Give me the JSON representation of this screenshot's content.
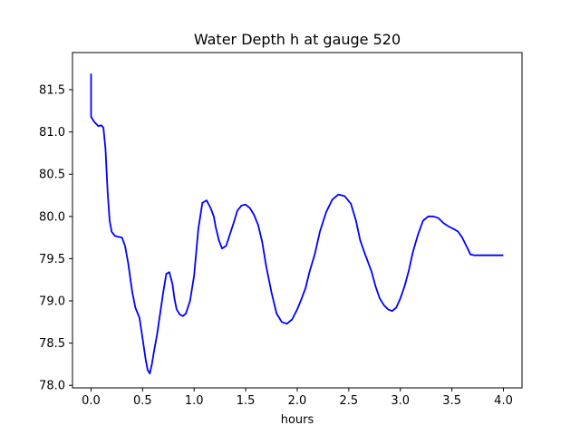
{
  "chart_data": {
    "type": "line",
    "title": "Water Depth h at gauge 520",
    "xlabel": "hours",
    "ylabel": "",
    "xlim": [
      -0.18,
      4.18
    ],
    "ylim": [
      77.97,
      81.94
    ],
    "xticks": [
      0.0,
      0.5,
      1.0,
      1.5,
      2.0,
      2.5,
      3.0,
      3.5,
      4.0
    ],
    "xtick_labels": [
      "0.0",
      "0.5",
      "1.0",
      "1.5",
      "2.0",
      "2.5",
      "3.0",
      "3.5",
      "4.0"
    ],
    "yticks": [
      78.0,
      78.5,
      79.0,
      79.5,
      80.0,
      80.5,
      81.0,
      81.5
    ],
    "ytick_labels": [
      "78.0",
      "78.5",
      "79.0",
      "79.5",
      "80.0",
      "80.5",
      "81.0",
      "81.5"
    ],
    "grid": false,
    "series": [
      {
        "name": "",
        "color": "#0000ff",
        "x": [
          0.0,
          0.0,
          0.0,
          0.03,
          0.07,
          0.1,
          0.12,
          0.14,
          0.16,
          0.18,
          0.2,
          0.23,
          0.26,
          0.3,
          0.33,
          0.36,
          0.4,
          0.43,
          0.47,
          0.5,
          0.53,
          0.55,
          0.57,
          0.59,
          0.61,
          0.64,
          0.67,
          0.7,
          0.73,
          0.76,
          0.79,
          0.81,
          0.83,
          0.86,
          0.89,
          0.92,
          0.96,
          1.0,
          1.04,
          1.08,
          1.12,
          1.16,
          1.19,
          1.21,
          1.24,
          1.27,
          1.31,
          1.35,
          1.39,
          1.42,
          1.46,
          1.5,
          1.54,
          1.58,
          1.62,
          1.66,
          1.7,
          1.75,
          1.8,
          1.85,
          1.9,
          1.95,
          2.0,
          2.04,
          2.08,
          2.12,
          2.17,
          2.22,
          2.28,
          2.34,
          2.4,
          2.46,
          2.52,
          2.57,
          2.61,
          2.65,
          2.68,
          2.72,
          2.76,
          2.8,
          2.84,
          2.88,
          2.92,
          2.96,
          3.0,
          3.04,
          3.08,
          3.12,
          3.17,
          3.22,
          3.27,
          3.32,
          3.37,
          3.42,
          3.47,
          3.52,
          3.56,
          3.6,
          3.64,
          3.68,
          3.72,
          3.76,
          3.8,
          3.83,
          3.86,
          3.89,
          3.92,
          3.95,
          3.98,
          4.0
        ],
        "y": [
          81.69,
          81.4,
          81.18,
          81.12,
          81.07,
          81.08,
          81.05,
          80.8,
          80.3,
          79.95,
          79.82,
          79.77,
          79.76,
          79.75,
          79.65,
          79.45,
          79.1,
          78.92,
          78.8,
          78.55,
          78.3,
          78.18,
          78.14,
          78.25,
          78.4,
          78.6,
          78.85,
          79.1,
          79.32,
          79.34,
          79.2,
          79.02,
          78.9,
          78.84,
          78.82,
          78.85,
          79.0,
          79.3,
          79.85,
          80.16,
          80.19,
          80.1,
          80.0,
          79.87,
          79.72,
          79.62,
          79.65,
          79.8,
          79.95,
          80.07,
          80.13,
          80.14,
          80.1,
          80.02,
          79.9,
          79.7,
          79.4,
          79.1,
          78.85,
          78.75,
          78.73,
          78.78,
          78.9,
          79.02,
          79.15,
          79.35,
          79.55,
          79.82,
          80.05,
          80.2,
          80.26,
          80.24,
          80.15,
          79.95,
          79.72,
          79.58,
          79.48,
          79.35,
          79.17,
          79.03,
          78.95,
          78.9,
          78.88,
          78.92,
          79.03,
          79.17,
          79.35,
          79.57,
          79.78,
          79.95,
          80.0,
          80.0,
          79.98,
          79.92,
          79.88,
          79.85,
          79.82,
          79.75,
          79.65,
          79.55,
          79.54,
          79.54,
          79.54,
          79.54,
          79.54,
          79.54,
          79.54,
          79.54,
          79.54,
          79.54
        ]
      }
    ]
  }
}
